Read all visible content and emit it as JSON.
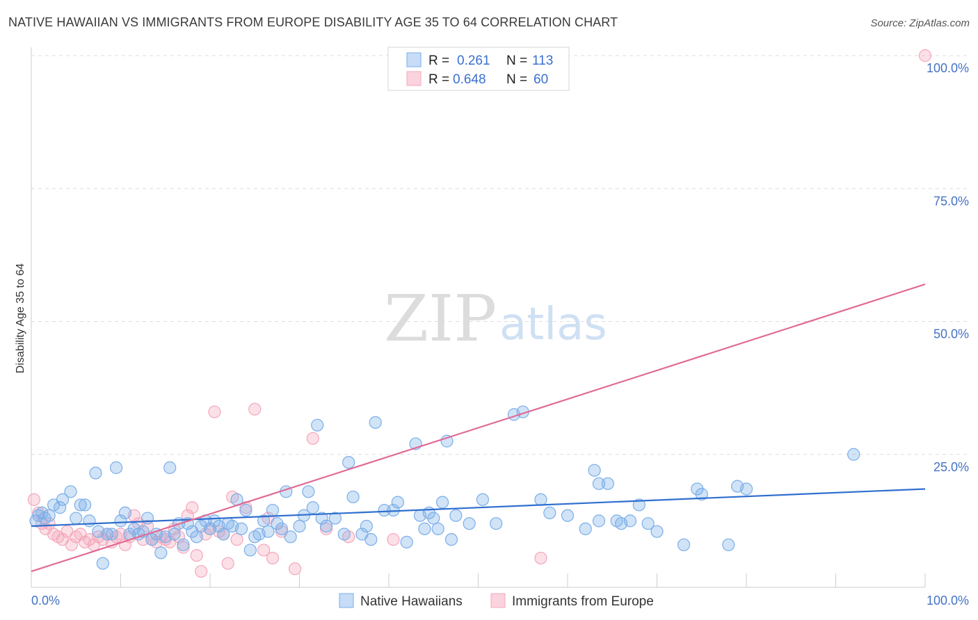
{
  "title": "NATIVE HAWAIIAN VS IMMIGRANTS FROM EUROPE DISABILITY AGE 35 TO 64 CORRELATION CHART",
  "source": "Source: ZipAtlas.com",
  "watermark": {
    "zip": "ZIP",
    "atlas": "atlas"
  },
  "legend_top": [
    {
      "r_label": "R =",
      "r_value": "0.261",
      "n_label": "N =",
      "n_value": "113",
      "color": "#7aaee8"
    },
    {
      "r_label": "R =",
      "r_value": "0.648",
      "n_label": "N =",
      "n_value": "60",
      "color": "#f4a7bb"
    }
  ],
  "chart_data": {
    "type": "scatter",
    "title": "NATIVE HAWAIIAN VS IMMIGRANTS FROM EUROPE DISABILITY AGE 35 TO 64 CORRELATION CHART",
    "xlabel": "",
    "ylabel": "Disability Age 35 to 64",
    "xlim": [
      0,
      100
    ],
    "ylim": [
      0,
      100
    ],
    "x_tick_labels": [
      "0.0%",
      "100.0%"
    ],
    "y_tick_labels": [
      "25.0%",
      "50.0%",
      "75.0%",
      "100.0%"
    ],
    "y_ticks": [
      25,
      50,
      75,
      100
    ],
    "grid": true,
    "legend_position": "top-center and bottom",
    "series": [
      {
        "name": "Native Hawaiians",
        "color": "#7aaee8",
        "trend": {
          "x": [
            0,
            100
          ],
          "y": [
            11.5,
            18.5
          ]
        },
        "points": [
          [
            0.5,
            12.5
          ],
          [
            0.8,
            13.5
          ],
          [
            1.2,
            14
          ],
          [
            1.5,
            13
          ],
          [
            2,
            13.5
          ],
          [
            2.5,
            15.5
          ],
          [
            3.5,
            16.5
          ],
          [
            3.2,
            15
          ],
          [
            4.4,
            18
          ],
          [
            5,
            13
          ],
          [
            5.5,
            15.5
          ],
          [
            6,
            15.5
          ],
          [
            6.5,
            12.5
          ],
          [
            7.2,
            21.5
          ],
          [
            7.5,
            10.5
          ],
          [
            8,
            4.5
          ],
          [
            8.5,
            10
          ],
          [
            9,
            10
          ],
          [
            9.5,
            22.5
          ],
          [
            10,
            12.5
          ],
          [
            10.5,
            14
          ],
          [
            11,
            10
          ],
          [
            11.5,
            11
          ],
          [
            12,
            10
          ],
          [
            12.5,
            10.5
          ],
          [
            13,
            13
          ],
          [
            13.5,
            9
          ],
          [
            14,
            10
          ],
          [
            14.5,
            6.5
          ],
          [
            15,
            9.5
          ],
          [
            15.5,
            22.5
          ],
          [
            16,
            10
          ],
          [
            16.5,
            12
          ],
          [
            17,
            8
          ],
          [
            17.5,
            12
          ],
          [
            18,
            10.5
          ],
          [
            18.5,
            9.5
          ],
          [
            19,
            11.5
          ],
          [
            19.5,
            12.5
          ],
          [
            20,
            11
          ],
          [
            20.5,
            12.5
          ],
          [
            21,
            11.5
          ],
          [
            21.5,
            10
          ],
          [
            22,
            12
          ],
          [
            22.5,
            11.5
          ],
          [
            23,
            16.5
          ],
          [
            23.5,
            11
          ],
          [
            24,
            14.5
          ],
          [
            24.5,
            7
          ],
          [
            25,
            9.5
          ],
          [
            25.5,
            10
          ],
          [
            26,
            12.5
          ],
          [
            26.5,
            10.5
          ],
          [
            27,
            14.5
          ],
          [
            27.5,
            12
          ],
          [
            28,
            11
          ],
          [
            28.5,
            18
          ],
          [
            29,
            9.5
          ],
          [
            30,
            11.5
          ],
          [
            30.5,
            13.5
          ],
          [
            31,
            18
          ],
          [
            31.5,
            15
          ],
          [
            32,
            30.5
          ],
          [
            32.5,
            13
          ],
          [
            33,
            11.5
          ],
          [
            34,
            13
          ],
          [
            35,
            10
          ],
          [
            35.5,
            23.5
          ],
          [
            36,
            17
          ],
          [
            37,
            10
          ],
          [
            37.5,
            11.5
          ],
          [
            38,
            9
          ],
          [
            38.5,
            31
          ],
          [
            39.5,
            14.5
          ],
          [
            40.5,
            14.5
          ],
          [
            41,
            16
          ],
          [
            42,
            8.5
          ],
          [
            43,
            27
          ],
          [
            43.5,
            13.5
          ],
          [
            44,
            11
          ],
          [
            44.5,
            14
          ],
          [
            45,
            13
          ],
          [
            45.5,
            11
          ],
          [
            46,
            16
          ],
          [
            46.5,
            27.5
          ],
          [
            47,
            9
          ],
          [
            47.5,
            13.5
          ],
          [
            49,
            12
          ],
          [
            50.5,
            16.5
          ],
          [
            52,
            12
          ],
          [
            54,
            32.5
          ],
          [
            55,
            33
          ],
          [
            57,
            16.5
          ],
          [
            58,
            14
          ],
          [
            60,
            13.5
          ],
          [
            62,
            11
          ],
          [
            63,
            22
          ],
          [
            63.5,
            19.5
          ],
          [
            64.5,
            19.5
          ],
          [
            63.5,
            12.5
          ],
          [
            65.5,
            12.5
          ],
          [
            66,
            12
          ],
          [
            67,
            12.5
          ],
          [
            68,
            15.5
          ],
          [
            69,
            12
          ],
          [
            70,
            10.5
          ],
          [
            73,
            8
          ],
          [
            74.5,
            18.5
          ],
          [
            75,
            17.5
          ],
          [
            78,
            8
          ],
          [
            79,
            19
          ],
          [
            80,
            18.5
          ],
          [
            92,
            25
          ]
        ]
      },
      {
        "name": "Immigrants from Europe",
        "color": "#f4a7bb",
        "trend": {
          "x": [
            0,
            100
          ],
          "y": [
            3,
            57
          ]
        },
        "points": [
          [
            0.3,
            16.5
          ],
          [
            0.8,
            14
          ],
          [
            1.2,
            12
          ],
          [
            1.6,
            11
          ],
          [
            2,
            12
          ],
          [
            2.5,
            10
          ],
          [
            3,
            9.5
          ],
          [
            3.5,
            9
          ],
          [
            4,
            10.5
          ],
          [
            4.5,
            8
          ],
          [
            5,
            9.5
          ],
          [
            5.5,
            10
          ],
          [
            6,
            8.5
          ],
          [
            6.5,
            9
          ],
          [
            7,
            8
          ],
          [
            7.5,
            9.5
          ],
          [
            8,
            9
          ],
          [
            8.5,
            10
          ],
          [
            9,
            8.5
          ],
          [
            9.5,
            9.5
          ],
          [
            10,
            10
          ],
          [
            10.5,
            8
          ],
          [
            11,
            9.5
          ],
          [
            11.5,
            13.5
          ],
          [
            12,
            12
          ],
          [
            12.5,
            9
          ],
          [
            13,
            11.5
          ],
          [
            13.5,
            9
          ],
          [
            14,
            8.5
          ],
          [
            14.5,
            9.5
          ],
          [
            15,
            9
          ],
          [
            15.5,
            8.5
          ],
          [
            16,
            11
          ],
          [
            16.5,
            9.5
          ],
          [
            17,
            7.5
          ],
          [
            17.5,
            13.5
          ],
          [
            18,
            15
          ],
          [
            18.5,
            6
          ],
          [
            19,
            3
          ],
          [
            19.5,
            10
          ],
          [
            20,
            11
          ],
          [
            20.5,
            33
          ],
          [
            21,
            10.5
          ],
          [
            21.5,
            10
          ],
          [
            22,
            4.5
          ],
          [
            22.5,
            17
          ],
          [
            23,
            9
          ],
          [
            24,
            15
          ],
          [
            25,
            33.5
          ],
          [
            26,
            7
          ],
          [
            26.5,
            13
          ],
          [
            27,
            5.5
          ],
          [
            28,
            10.5
          ],
          [
            29.5,
            3.5
          ],
          [
            31.5,
            28
          ],
          [
            33,
            11
          ],
          [
            35.5,
            9.5
          ],
          [
            40.5,
            9
          ],
          [
            57,
            5.5
          ],
          [
            100,
            100
          ]
        ]
      }
    ]
  },
  "bottom_legend": [
    {
      "label": "Native Hawaiians",
      "color": "#7aaee8"
    },
    {
      "label": "Immigrants from Europe",
      "color": "#f4a7bb"
    }
  ]
}
